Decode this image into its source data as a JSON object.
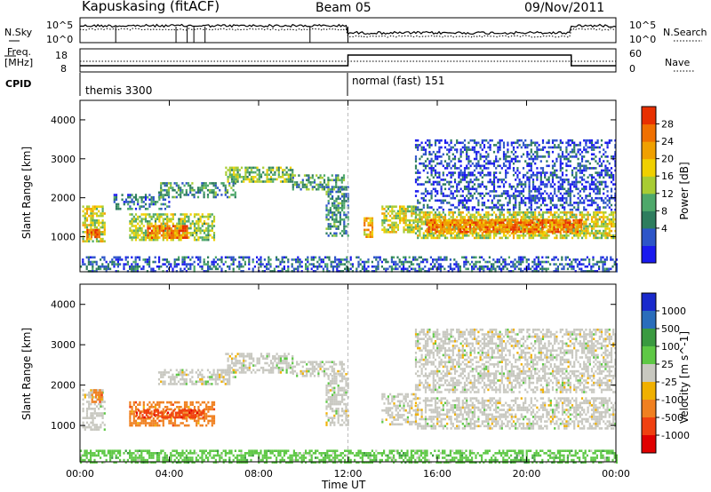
{
  "header": {
    "station": "Kapuskasing (fitACF)",
    "beam": "Beam 05",
    "date": "09/Nov/2011"
  },
  "top_panels": {
    "nsky_label": "N.Sky",
    "nsky_ticks": [
      "10^5",
      "10^0"
    ],
    "nsearch_label": "N.Search",
    "nsearch_ticks": [
      "10^5",
      "10^0"
    ],
    "freq_label_1": "Freq.",
    "freq_label_2": "[MHz]",
    "freq_ticks": [
      "18",
      "8"
    ],
    "nave_label": "Nave",
    "nave_ticks": [
      "60",
      "0"
    ],
    "cpid_label": "CPID",
    "cpid_segments": [
      "themis 3300",
      "normal (fast) 151"
    ]
  },
  "colors": {
    "power": [
      "#1a1aee",
      "#2d55c8",
      "#2e7d5e",
      "#4ea86a",
      "#a8cc33",
      "#f0d000",
      "#f0a000",
      "#f07000",
      "#e83000"
    ],
    "velocity": [
      "#1a2acc",
      "#2a6dbb",
      "#3a9a40",
      "#5ec845",
      "#c8c8c0",
      "#f0b000",
      "#f08020",
      "#f04010",
      "#e00000"
    ]
  },
  "chart_data": [
    {
      "type": "heatmap",
      "name": "power",
      "ylabel": "Slant Range [km]",
      "yticks": [
        1000,
        2000,
        3000,
        4000
      ],
      "ylim": [
        100,
        4500
      ],
      "colorbar": {
        "label": "Power [dB]",
        "ticks": [
          "28",
          "24",
          "20",
          "16",
          "12",
          "8",
          "4"
        ],
        "range": [
          0,
          30
        ]
      },
      "x_hours": [
        0,
        24
      ],
      "xticks": [
        "00:00",
        "04:00",
        "08:00",
        "12:00",
        "16:00",
        "20:00",
        "00:00"
      ],
      "xlabel": "Time UT",
      "regions": [
        {
          "t0": 0.1,
          "t1": 1.1,
          "r0": 900,
          "r1": 1800,
          "level": 0.55
        },
        {
          "t0": 0.3,
          "t1": 0.9,
          "r0": 1000,
          "r1": 1200,
          "level": 0.85
        },
        {
          "t0": 2.2,
          "t1": 6.0,
          "r0": 900,
          "r1": 1600,
          "level": 0.5
        },
        {
          "t0": 3.0,
          "t1": 4.8,
          "r0": 1000,
          "r1": 1300,
          "level": 0.8
        },
        {
          "t0": 1.5,
          "t1": 4.0,
          "r0": 1700,
          "r1": 2100,
          "level": 0.25
        },
        {
          "t0": 3.5,
          "t1": 7.0,
          "r0": 2000,
          "r1": 2400,
          "level": 0.3
        },
        {
          "t0": 6.5,
          "t1": 9.5,
          "r0": 2400,
          "r1": 2800,
          "level": 0.45
        },
        {
          "t0": 9.5,
          "t1": 11.8,
          "r0": 2200,
          "r1": 2600,
          "level": 0.35
        },
        {
          "t0": 11.0,
          "t1": 12.0,
          "r0": 1000,
          "r1": 2300,
          "level": 0.3
        },
        {
          "t0": 12.7,
          "t1": 13.1,
          "r0": 1000,
          "r1": 1500,
          "level": 0.7
        },
        {
          "t0": 13.5,
          "t1": 15.0,
          "r0": 1100,
          "r1": 1800,
          "level": 0.55
        },
        {
          "t0": 15.0,
          "t1": 24.0,
          "r0": 950,
          "r1": 1650,
          "level": 0.55
        },
        {
          "t0": 15.5,
          "t1": 22.5,
          "r0": 1150,
          "r1": 1450,
          "level": 0.8
        },
        {
          "t0": 15.0,
          "t1": 24.0,
          "r0": 1700,
          "r1": 3500,
          "level": 0.15
        },
        {
          "t0": 0.0,
          "t1": 24.0,
          "r0": 100,
          "r1": 500,
          "level": 0.2
        }
      ]
    },
    {
      "type": "heatmap",
      "name": "velocity",
      "ylabel": "Slant Range [km]",
      "yticks": [
        1000,
        2000,
        3000,
        4000
      ],
      "ylim": [
        100,
        4500
      ],
      "colorbar": {
        "label": "Velocity [m s^-1]",
        "ticks": [
          "1000",
          "500",
          "100",
          "25",
          "-25",
          "-100",
          "-500",
          "-1000"
        ]
      },
      "x_hours": [
        0,
        24
      ],
      "xticks": [
        "00:00",
        "04:00",
        "08:00",
        "12:00",
        "16:00",
        "20:00",
        "00:00"
      ],
      "xlabel": "Time UT",
      "regions": [
        {
          "t0": 0.1,
          "t1": 1.1,
          "r0": 900,
          "r1": 1900,
          "cls": 4
        },
        {
          "t0": 0.5,
          "t1": 1.0,
          "r0": 1600,
          "r1": 1900,
          "cls": 6
        },
        {
          "t0": 2.2,
          "t1": 6.0,
          "r0": 1000,
          "r1": 1600,
          "cls": 6
        },
        {
          "t0": 2.5,
          "t1": 5.5,
          "r0": 1200,
          "r1": 1400,
          "cls": 7
        },
        {
          "t0": 3.5,
          "t1": 7.0,
          "r0": 2000,
          "r1": 2400,
          "cls": 4
        },
        {
          "t0": 6.5,
          "t1": 9.5,
          "r0": 2300,
          "r1": 2800,
          "cls": 4
        },
        {
          "t0": 9.5,
          "t1": 11.8,
          "r0": 2200,
          "r1": 2600,
          "cls": 4
        },
        {
          "t0": 11.0,
          "t1": 12.0,
          "r0": 1000,
          "r1": 2300,
          "cls": 4
        },
        {
          "t0": 13.5,
          "t1": 15.0,
          "r0": 1000,
          "r1": 1800,
          "cls": 4
        },
        {
          "t0": 15.0,
          "t1": 24.0,
          "r0": 950,
          "r1": 1700,
          "cls": 4
        },
        {
          "t0": 15.0,
          "t1": 24.0,
          "r0": 1800,
          "r1": 3400,
          "cls": 4
        },
        {
          "t0": 0.0,
          "t1": 24.0,
          "r0": 100,
          "r1": 400,
          "cls": 3
        }
      ]
    }
  ]
}
